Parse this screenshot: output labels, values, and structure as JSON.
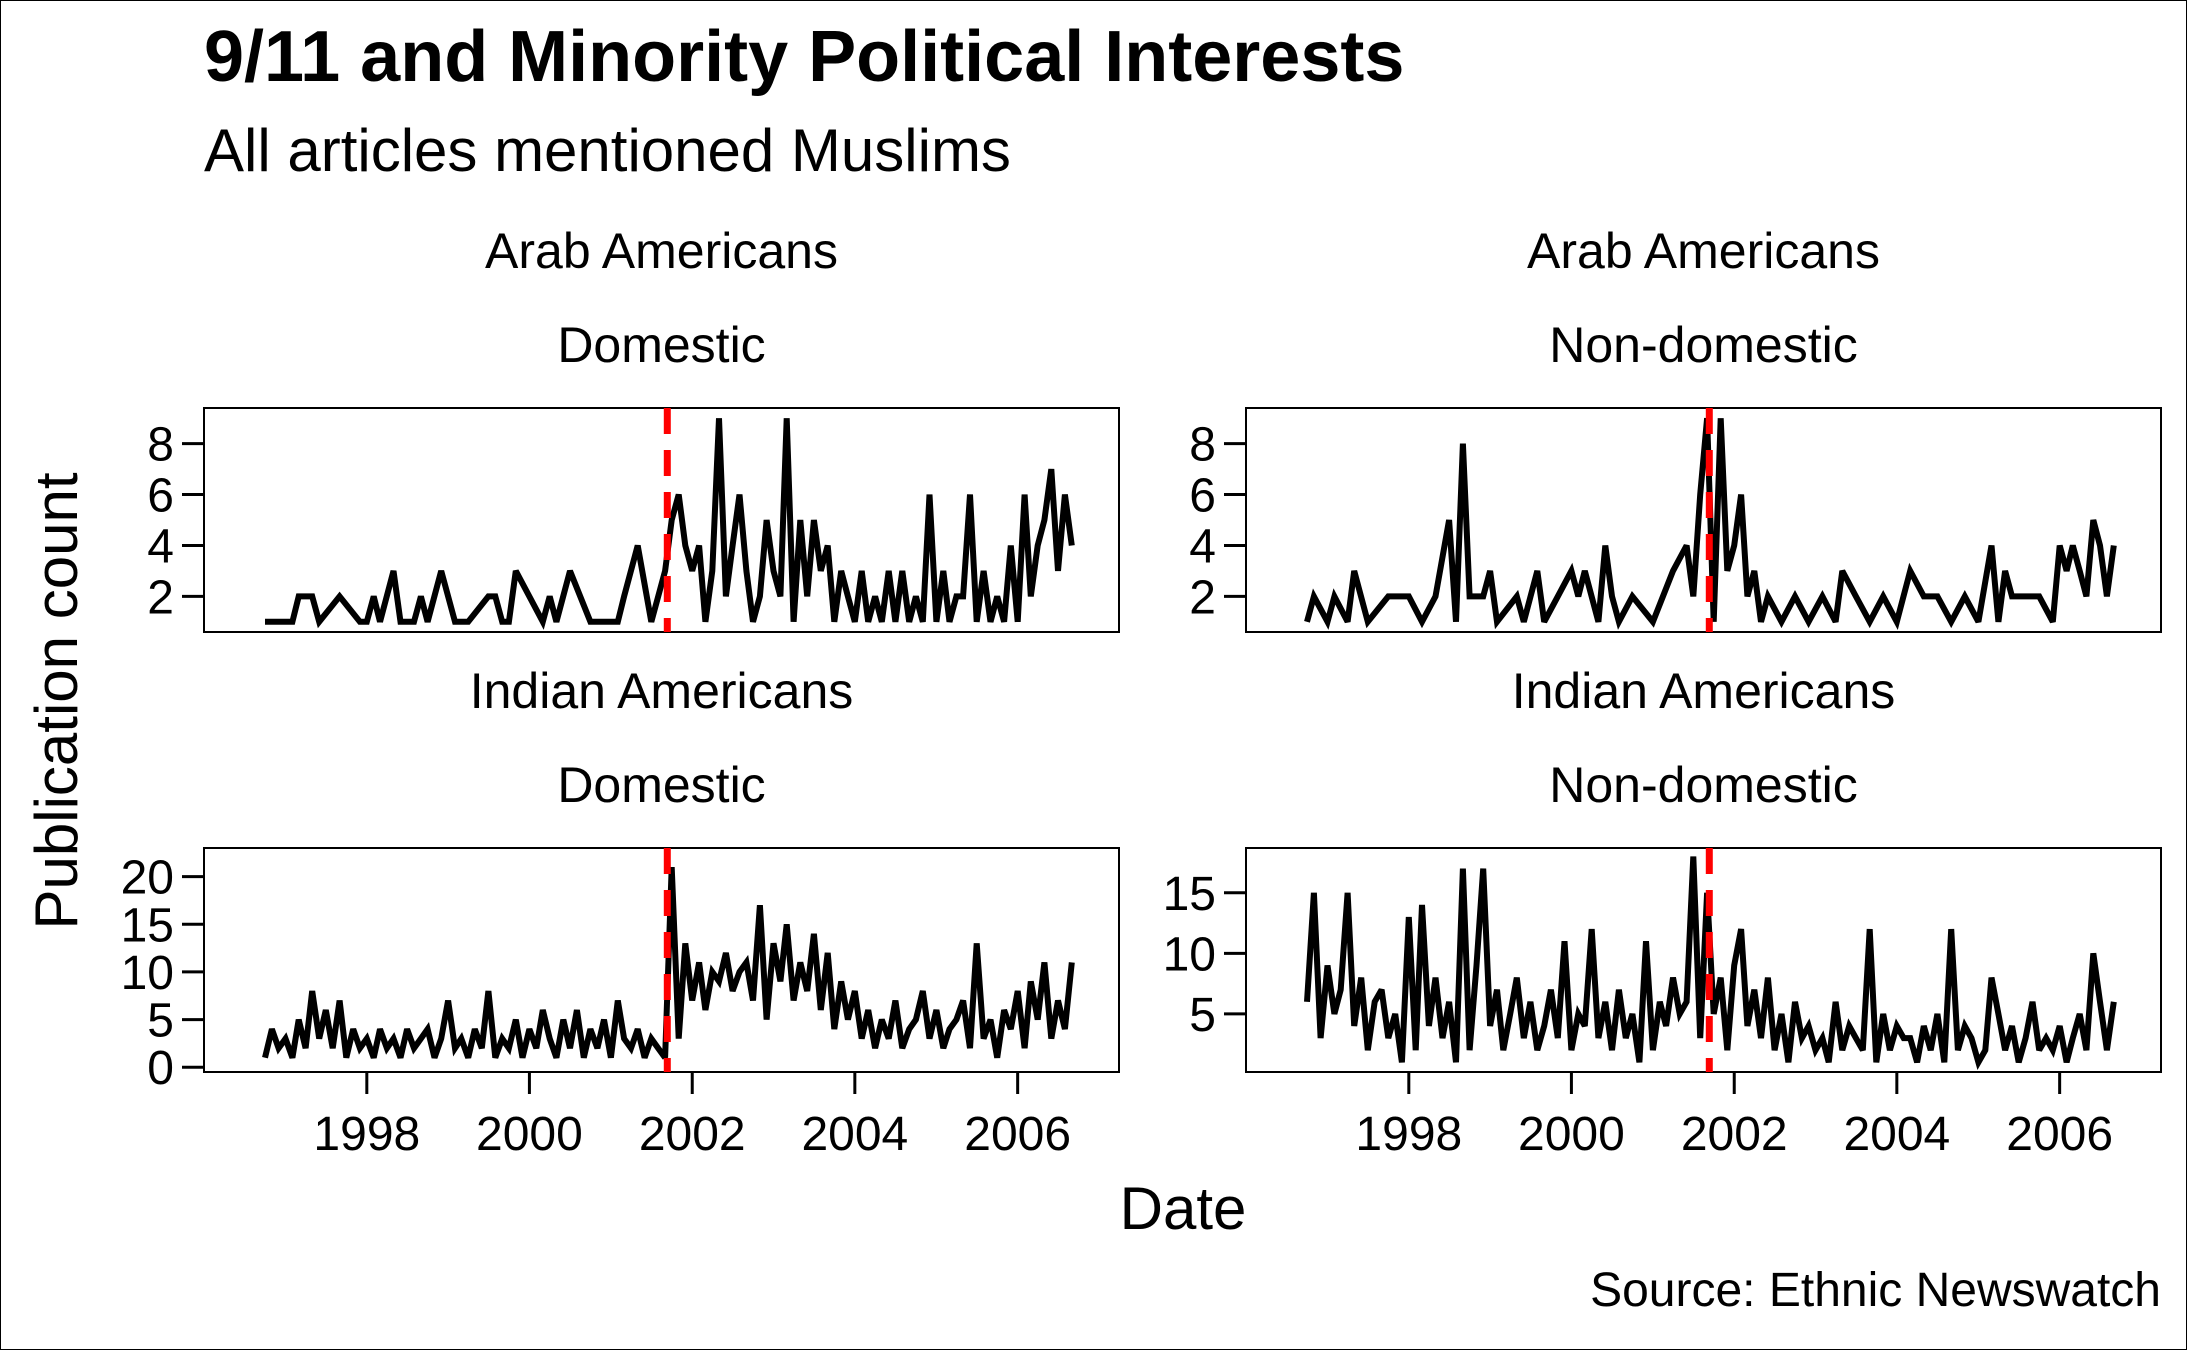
{
  "title": "9/11 and Minority Political Interests",
  "subtitle": "All articles mentioned Muslims",
  "xlabel": "Date",
  "ylabel": "Publication count",
  "caption": "Source: Ethnic Newswatch",
  "colors": {
    "line": "#000000",
    "event_line": "#ff0000"
  },
  "chart_data": [
    {
      "type": "line",
      "group": "Arab Americans",
      "scope": "Domestic",
      "x_range": [
        "1996-01-01",
        "2007-04-01"
      ],
      "ylim": [
        0.6,
        9.4
      ],
      "yticks": [
        2,
        4,
        6,
        8
      ],
      "xticks": [
        "1998",
        "2000",
        "2002",
        "2004",
        "2006"
      ],
      "event_date": "2001-09-11",
      "series": [
        {
          "x": [
            "1996-10-01",
            "1997-01-01",
            "1997-02-01",
            "1997-03-01",
            "1997-05-01",
            "1997-06-01",
            "1997-09-01",
            "1997-12-01",
            "1998-01-01",
            "1998-02-01",
            "1998-03-01",
            "1998-05-01",
            "1998-06-01",
            "1998-08-01",
            "1998-09-01",
            "1998-10-01",
            "1998-12-01",
            "1999-02-01",
            "1999-04-01",
            "1999-07-01",
            "1999-08-01",
            "1999-09-01",
            "1999-10-01",
            "1999-11-01",
            "2000-03-01",
            "2000-04-01",
            "2000-05-01",
            "2000-07-01",
            "2000-10-01",
            "2001-02-01",
            "2001-03-01",
            "2001-05-01",
            "2001-07-01",
            "2001-08-01",
            "2001-09-01",
            "2001-10-01",
            "2001-11-01",
            "2001-12-01",
            "2002-01-01",
            "2002-02-01",
            "2002-03-01",
            "2002-04-01",
            "2002-05-01",
            "2002-06-01",
            "2002-07-01",
            "2002-08-01",
            "2002-09-01",
            "2002-10-01",
            "2002-11-01",
            "2002-12-01",
            "2003-01-01",
            "2003-02-01",
            "2003-03-01",
            "2003-04-01",
            "2003-05-01",
            "2003-06-01",
            "2003-07-01",
            "2003-08-01",
            "2003-09-01",
            "2003-10-01",
            "2003-11-01",
            "2003-12-01",
            "2004-01-01",
            "2004-02-01",
            "2004-03-01",
            "2004-04-01",
            "2004-05-01",
            "2004-06-01",
            "2004-07-01",
            "2004-08-01",
            "2004-09-01",
            "2004-10-01",
            "2004-11-01",
            "2004-12-01",
            "2005-01-01",
            "2005-02-01",
            "2005-03-01",
            "2005-04-01",
            "2005-05-01",
            "2005-06-01",
            "2005-07-01",
            "2005-08-01",
            "2005-09-01",
            "2005-10-01",
            "2005-11-01",
            "2005-12-01",
            "2006-01-01",
            "2006-02-01",
            "2006-03-01",
            "2006-04-01",
            "2006-05-01",
            "2006-06-01",
            "2006-07-01",
            "2006-08-01",
            "2006-09-01"
          ],
          "y": [
            1,
            1,
            1,
            2,
            2,
            1,
            2,
            1,
            1,
            2,
            1,
            3,
            1,
            1,
            2,
            1,
            3,
            1,
            1,
            2,
            2,
            1,
            1,
            3,
            1,
            2,
            1,
            3,
            1,
            1,
            2,
            4,
            1,
            2,
            3,
            5,
            6,
            4,
            3,
            4,
            1,
            3,
            9,
            2,
            4,
            6,
            3,
            1,
            2,
            5,
            3,
            2,
            9,
            1,
            5,
            2,
            5,
            3,
            4,
            1,
            3,
            2,
            1,
            3,
            1,
            2,
            1,
            3,
            1,
            3,
            1,
            2,
            1,
            6,
            1,
            3,
            1,
            2,
            2,
            6,
            1,
            3,
            1,
            2,
            1,
            4,
            1,
            6,
            2,
            4,
            5,
            7,
            3,
            6,
            4
          ]
        }
      ]
    },
    {
      "type": "line",
      "group": "Arab Americans",
      "scope": "Non-domestic",
      "x_range": [
        "1996-01-01",
        "2007-04-01"
      ],
      "ylim": [
        0.6,
        9.4
      ],
      "yticks": [
        2,
        4,
        6,
        8
      ],
      "xticks": [
        "1998",
        "2000",
        "2002",
        "2004",
        "2006"
      ],
      "event_date": "2001-09-11",
      "series": [
        {
          "x": [
            "1996-10-01",
            "1996-11-01",
            "1997-01-01",
            "1997-02-01",
            "1997-04-01",
            "1997-05-01",
            "1997-07-01",
            "1997-10-01",
            "1998-01-01",
            "1998-03-01",
            "1998-05-01",
            "1998-07-01",
            "1998-08-01",
            "1998-09-01",
            "1998-10-01",
            "1998-12-01",
            "1999-01-01",
            "1999-02-01",
            "1999-05-01",
            "1999-06-01",
            "1999-08-01",
            "1999-09-01",
            "1999-11-01",
            "2000-01-01",
            "2000-02-01",
            "2000-03-01",
            "2000-05-01",
            "2000-06-01",
            "2000-07-01",
            "2000-08-01",
            "2000-10-01",
            "2001-01-01",
            "2001-04-01",
            "2001-06-01",
            "2001-07-01",
            "2001-08-01",
            "2001-09-01",
            "2001-10-01",
            "2001-11-01",
            "2001-12-01",
            "2002-01-01",
            "2002-02-01",
            "2002-03-01",
            "2002-04-01",
            "2002-05-01",
            "2002-06-01",
            "2002-08-01",
            "2002-10-01",
            "2002-12-01",
            "2003-02-01",
            "2003-04-01",
            "2003-05-01",
            "2003-07-01",
            "2003-09-01",
            "2003-11-01",
            "2004-01-01",
            "2004-03-01",
            "2004-05-01",
            "2004-07-01",
            "2004-09-01",
            "2004-11-01",
            "2005-01-01",
            "2005-03-01",
            "2005-04-01",
            "2005-05-01",
            "2005-06-01",
            "2005-08-01",
            "2005-10-01",
            "2005-12-01",
            "2006-01-01",
            "2006-02-01",
            "2006-03-01",
            "2006-04-01",
            "2006-05-01",
            "2006-06-01",
            "2006-07-01",
            "2006-08-01",
            "2006-09-01"
          ],
          "y": [
            1,
            2,
            1,
            2,
            1,
            3,
            1,
            2,
            2,
            1,
            2,
            5,
            1,
            8,
            2,
            2,
            3,
            1,
            2,
            1,
            3,
            1,
            2,
            3,
            2,
            3,
            1,
            4,
            2,
            1,
            2,
            1,
            3,
            4,
            2,
            6,
            9,
            1,
            9,
            3,
            4,
            6,
            2,
            3,
            1,
            2,
            1,
            2,
            1,
            2,
            1,
            3,
            2,
            1,
            2,
            1,
            3,
            2,
            2,
            1,
            2,
            1,
            4,
            1,
            3,
            2,
            2,
            2,
            1,
            4,
            3,
            4,
            3,
            2,
            5,
            4,
            2,
            4
          ]
        }
      ]
    },
    {
      "type": "line",
      "group": "Indian Americans",
      "scope": "Domestic",
      "x_range": [
        "1996-01-01",
        "2007-04-01"
      ],
      "ylim": [
        -0.5,
        23
      ],
      "yticks": [
        0,
        5,
        10,
        15,
        20
      ],
      "xticks": [
        "1998",
        "2000",
        "2002",
        "2004",
        "2006"
      ],
      "event_date": "2001-09-11",
      "series": [
        {
          "x": [
            "1996-10-01",
            "1996-11-01",
            "1996-12-01",
            "1997-01-01",
            "1997-02-01",
            "1997-03-01",
            "1997-04-01",
            "1997-05-01",
            "1997-06-01",
            "1997-07-01",
            "1997-08-01",
            "1997-09-01",
            "1997-10-01",
            "1997-11-01",
            "1997-12-01",
            "1998-01-01",
            "1998-02-01",
            "1998-03-01",
            "1998-04-01",
            "1998-05-01",
            "1998-06-01",
            "1998-07-01",
            "1998-08-01",
            "1998-09-01",
            "1998-10-01",
            "1998-11-01",
            "1998-12-01",
            "1999-01-01",
            "1999-02-01",
            "1999-03-01",
            "1999-04-01",
            "1999-05-01",
            "1999-06-01",
            "1999-07-01",
            "1999-08-01",
            "1999-09-01",
            "1999-10-01",
            "1999-11-01",
            "1999-12-01",
            "2000-01-01",
            "2000-02-01",
            "2000-03-01",
            "2000-04-01",
            "2000-05-01",
            "2000-06-01",
            "2000-07-01",
            "2000-08-01",
            "2000-09-01",
            "2000-10-01",
            "2000-11-01",
            "2000-12-01",
            "2001-01-01",
            "2001-02-01",
            "2001-03-01",
            "2001-04-01",
            "2001-05-01",
            "2001-06-01",
            "2001-07-01",
            "2001-08-01",
            "2001-09-01",
            "2001-10-01",
            "2001-11-01",
            "2001-12-01",
            "2002-01-01",
            "2002-02-01",
            "2002-03-01",
            "2002-04-01",
            "2002-05-01",
            "2002-06-01",
            "2002-07-01",
            "2002-08-01",
            "2002-09-01",
            "2002-10-01",
            "2002-11-01",
            "2002-12-01",
            "2003-01-01",
            "2003-02-01",
            "2003-03-01",
            "2003-04-01",
            "2003-05-01",
            "2003-06-01",
            "2003-07-01",
            "2003-08-01",
            "2003-09-01",
            "2003-10-01",
            "2003-11-01",
            "2003-12-01",
            "2004-01-01",
            "2004-02-01",
            "2004-03-01",
            "2004-04-01",
            "2004-05-01",
            "2004-06-01",
            "2004-07-01",
            "2004-08-01",
            "2004-09-01",
            "2004-10-01",
            "2004-11-01",
            "2004-12-01",
            "2005-01-01",
            "2005-02-01",
            "2005-03-01",
            "2005-04-01",
            "2005-05-01",
            "2005-06-01",
            "2005-07-01",
            "2005-08-01",
            "2005-09-01",
            "2005-10-01",
            "2005-11-01",
            "2005-12-01",
            "2006-01-01",
            "2006-02-01",
            "2006-03-01",
            "2006-04-01",
            "2006-05-01",
            "2006-06-01",
            "2006-07-01",
            "2006-08-01",
            "2006-09-01"
          ],
          "y": [
            1,
            4,
            2,
            3,
            1,
            5,
            2,
            8,
            3,
            6,
            2,
            7,
            1,
            4,
            2,
            3,
            1,
            4,
            2,
            3,
            1,
            4,
            2,
            3,
            4,
            1,
            3,
            7,
            2,
            3,
            1,
            4,
            2,
            8,
            1,
            3,
            2,
            5,
            1,
            4,
            2,
            6,
            3,
            1,
            5,
            2,
            6,
            1,
            4,
            2,
            5,
            1,
            7,
            3,
            2,
            4,
            1,
            3,
            2,
            1,
            21,
            3,
            13,
            7,
            11,
            6,
            10,
            9,
            12,
            8,
            10,
            11,
            7,
            17,
            5,
            13,
            9,
            15,
            7,
            11,
            8,
            14,
            6,
            12,
            4,
            9,
            5,
            8,
            3,
            6,
            2,
            5,
            3,
            7,
            2,
            4,
            5,
            8,
            3,
            6,
            2,
            4,
            5,
            7,
            2,
            13,
            3,
            5,
            1,
            6,
            4,
            8,
            2,
            9,
            5,
            11,
            3,
            7,
            4,
            11
          ]
        }
      ]
    },
    {
      "type": "line",
      "group": "Indian Americans",
      "scope": "Non-domestic",
      "x_range": [
        "1996-01-01",
        "2007-04-01"
      ],
      "ylim": [
        0.2,
        18.7
      ],
      "yticks": [
        5,
        10,
        15
      ],
      "xticks": [
        "1998",
        "2000",
        "2002",
        "2004",
        "2006"
      ],
      "event_date": "2001-09-11",
      "series": [
        {
          "x": [
            "1996-10-01",
            "1996-11-01",
            "1996-12-01",
            "1997-01-01",
            "1997-02-01",
            "1997-03-01",
            "1997-04-01",
            "1997-05-01",
            "1997-06-01",
            "1997-07-01",
            "1997-08-01",
            "1997-09-01",
            "1997-10-01",
            "1997-11-01",
            "1997-12-01",
            "1998-01-01",
            "1998-02-01",
            "1998-03-01",
            "1998-04-01",
            "1998-05-01",
            "1998-06-01",
            "1998-07-01",
            "1998-08-01",
            "1998-09-01",
            "1998-10-01",
            "1998-11-01",
            "1998-12-01",
            "1999-01-01",
            "1999-02-01",
            "1999-03-01",
            "1999-04-01",
            "1999-05-01",
            "1999-06-01",
            "1999-07-01",
            "1999-08-01",
            "1999-09-01",
            "1999-10-01",
            "1999-11-01",
            "1999-12-01",
            "2000-01-01",
            "2000-02-01",
            "2000-03-01",
            "2000-04-01",
            "2000-05-01",
            "2000-06-01",
            "2000-07-01",
            "2000-08-01",
            "2000-09-01",
            "2000-10-01",
            "2000-11-01",
            "2000-12-01",
            "2001-01-01",
            "2001-02-01",
            "2001-03-01",
            "2001-04-01",
            "2001-05-01",
            "2001-06-01",
            "2001-07-01",
            "2001-08-01",
            "2001-09-01",
            "2001-10-01",
            "2001-11-01",
            "2001-12-01",
            "2002-01-01",
            "2002-02-01",
            "2002-03-01",
            "2002-04-01",
            "2002-05-01",
            "2002-06-01",
            "2002-07-01",
            "2002-08-01",
            "2002-09-01",
            "2002-10-01",
            "2002-11-01",
            "2002-12-01",
            "2003-01-01",
            "2003-02-01",
            "2003-03-01",
            "2003-04-01",
            "2003-05-01",
            "2003-06-01",
            "2003-07-01",
            "2003-08-01",
            "2003-09-01",
            "2003-10-01",
            "2003-11-01",
            "2003-12-01",
            "2004-01-01",
            "2004-02-01",
            "2004-03-01",
            "2004-04-01",
            "2004-05-01",
            "2004-06-01",
            "2004-07-01",
            "2004-08-01",
            "2004-09-01",
            "2004-10-01",
            "2004-11-01",
            "2004-12-01",
            "2005-01-01",
            "2005-02-01",
            "2005-03-01",
            "2005-04-01",
            "2005-05-01",
            "2005-06-01",
            "2005-07-01",
            "2005-08-01",
            "2005-09-01",
            "2005-10-01",
            "2005-11-01",
            "2005-12-01",
            "2006-01-01",
            "2006-02-01",
            "2006-03-01",
            "2006-04-01",
            "2006-05-01",
            "2006-06-01",
            "2006-07-01",
            "2006-08-01",
            "2006-09-01"
          ],
          "y": [
            6,
            15,
            3,
            9,
            5,
            7,
            15,
            4,
            8,
            2,
            6,
            7,
            3,
            5,
            1,
            13,
            2,
            14,
            4,
            8,
            3,
            6,
            1,
            17,
            2,
            9,
            17,
            4,
            7,
            2,
            5,
            8,
            3,
            6,
            2,
            4,
            7,
            3,
            11,
            2,
            5,
            4,
            12,
            3,
            6,
            2,
            7,
            3,
            5,
            1,
            11,
            2,
            6,
            4,
            8,
            5,
            6,
            18,
            3,
            15,
            5,
            8,
            2,
            9,
            12,
            4,
            7,
            3,
            8,
            2,
            5,
            1,
            6,
            3,
            4,
            2,
            3,
            1,
            6,
            2,
            4,
            3,
            2,
            12,
            1,
            5,
            2,
            4,
            3,
            3,
            1,
            4,
            2,
            5,
            1,
            12,
            2,
            4,
            3,
            1,
            2,
            8,
            5,
            2,
            4,
            1,
            3,
            6,
            2,
            3,
            2,
            4,
            1,
            3,
            5,
            2,
            10,
            6,
            2,
            6
          ]
        }
      ]
    }
  ]
}
